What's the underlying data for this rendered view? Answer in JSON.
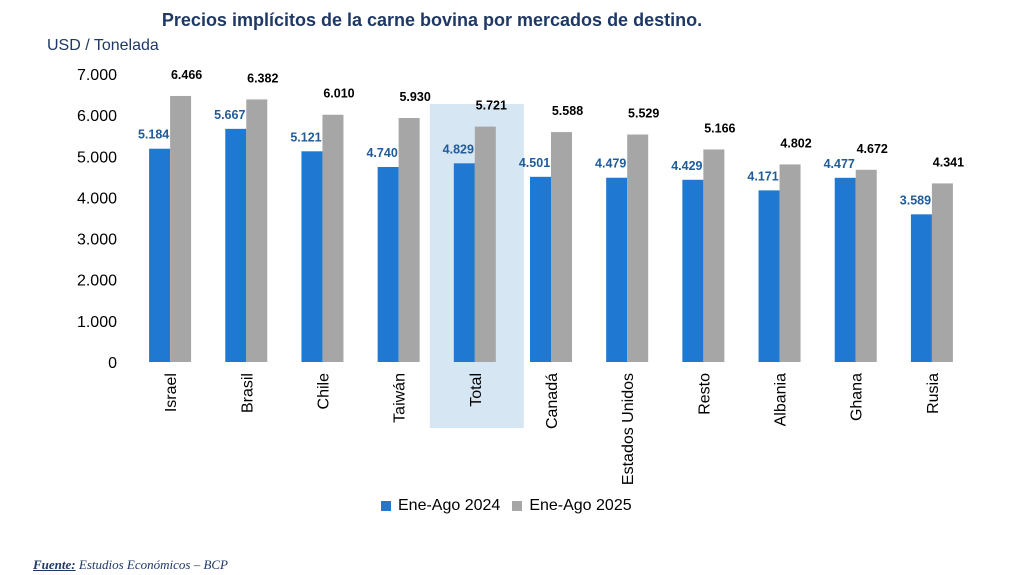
{
  "chart_data": {
    "type": "bar",
    "title": "Precios implícitos de la carne bovina por mercados de destino.",
    "ylabel": "USD / Tonelada",
    "ylim": [
      0,
      7000
    ],
    "yticks": [
      "0",
      "1.000",
      "2.000",
      "3.000",
      "4.000",
      "5.000",
      "6.000",
      "7.000"
    ],
    "grid": false,
    "legend_position": "bottom",
    "highlighted_category": "Total",
    "categories": [
      "Israel",
      "Brasil",
      "Chile",
      "Taiwán",
      "Total",
      "Canadá",
      "Estados Unidos",
      "Resto",
      "Albania",
      "Ghana",
      "Rusia"
    ],
    "series": [
      {
        "name": "Ene-Ago 2024",
        "color": "#1f78d1",
        "values": [
          5184,
          5667,
          5121,
          4740,
          4829,
          4501,
          4479,
          4429,
          4171,
          4477,
          3589
        ],
        "labels": [
          "5.184",
          "5.667",
          "5.121",
          "4.740",
          "4.829",
          "4.501",
          "4.479",
          "4.429",
          "4.171",
          "4.477",
          "3.589"
        ]
      },
      {
        "name": "Ene-Ago 2025",
        "color": "#a6a6a6",
        "values": [
          6466,
          6382,
          6010,
          5930,
          5721,
          5588,
          5529,
          5166,
          4802,
          4672,
          4341
        ],
        "labels": [
          "6.466",
          "6.382",
          "6.010",
          "5.930",
          "5.721",
          "5.588",
          "5.529",
          "5.166",
          "4.802",
          "4.672",
          "4.341"
        ]
      }
    ]
  },
  "colors": {
    "series_2024": "#1f78d1",
    "series_2025": "#a6a6a6",
    "highlight": "#d6e6f3",
    "label_2024": "#1f5c99",
    "title": "#1f3864"
  },
  "footer": {
    "source_label": "Fuente:",
    "source_text": "Estudios Económicos – BCP"
  }
}
